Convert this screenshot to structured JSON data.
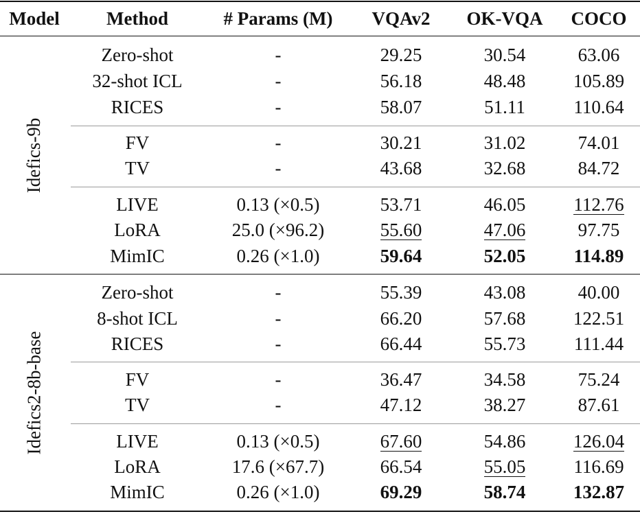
{
  "headers": {
    "model": "Model",
    "method": "Method",
    "params": "# Params (M)",
    "vqav2": "VQAv2",
    "okvqa": "OK-VQA",
    "coco": "COCO"
  },
  "groups": [
    {
      "model": "Idefics-9b",
      "rows": [
        {
          "method": "Zero-shot",
          "params": "-",
          "vqav2": "29.25",
          "okvqa": "30.54",
          "coco": "63.06"
        },
        {
          "method": "32-shot ICL",
          "params": "-",
          "vqav2": "56.18",
          "okvqa": "48.48",
          "coco": "105.89"
        },
        {
          "method": "RICES",
          "params": "-",
          "vqav2": "58.07",
          "okvqa": "51.11",
          "coco": "110.64"
        },
        {
          "method": "FV",
          "params": "-",
          "vqav2": "30.21",
          "okvqa": "31.02",
          "coco": "74.01"
        },
        {
          "method": "TV",
          "params": "-",
          "vqav2": "43.68",
          "okvqa": "32.68",
          "coco": "84.72"
        },
        {
          "method": "LIVE",
          "params": "0.13 (×0.5)",
          "vqav2": "53.71",
          "okvqa": "46.05",
          "coco": "112.76"
        },
        {
          "method": "LoRA",
          "params": "25.0 (×96.2)",
          "vqav2": "55.60",
          "okvqa": "47.06",
          "coco": "97.75"
        },
        {
          "method": "MimIC",
          "params": "0.26 (×1.0)",
          "vqav2": "59.64",
          "okvqa": "52.05",
          "coco": "114.89"
        }
      ]
    },
    {
      "model": "Idefics2-8b-base",
      "rows": [
        {
          "method": "Zero-shot",
          "params": "-",
          "vqav2": "55.39",
          "okvqa": "43.08",
          "coco": "40.00"
        },
        {
          "method": "8-shot ICL",
          "params": "-",
          "vqav2": "66.20",
          "okvqa": "57.68",
          "coco": "122.51"
        },
        {
          "method": "RICES",
          "params": "-",
          "vqav2": "66.44",
          "okvqa": "55.73",
          "coco": "111.44"
        },
        {
          "method": "FV",
          "params": "-",
          "vqav2": "36.47",
          "okvqa": "34.58",
          "coco": "75.24"
        },
        {
          "method": "TV",
          "params": "-",
          "vqav2": "47.12",
          "okvqa": "38.27",
          "coco": "87.61"
        },
        {
          "method": "LIVE",
          "params": "0.13 (×0.5)",
          "vqav2": "67.60",
          "okvqa": "54.86",
          "coco": "126.04"
        },
        {
          "method": "LoRA",
          "params": "17.6 (×67.7)",
          "vqav2": "66.54",
          "okvqa": "55.05",
          "coco": "116.69"
        },
        {
          "method": "MimIC",
          "params": "0.26 (×1.0)",
          "vqav2": "69.29",
          "okvqa": "58.74",
          "coco": "132.87"
        }
      ]
    }
  ]
}
